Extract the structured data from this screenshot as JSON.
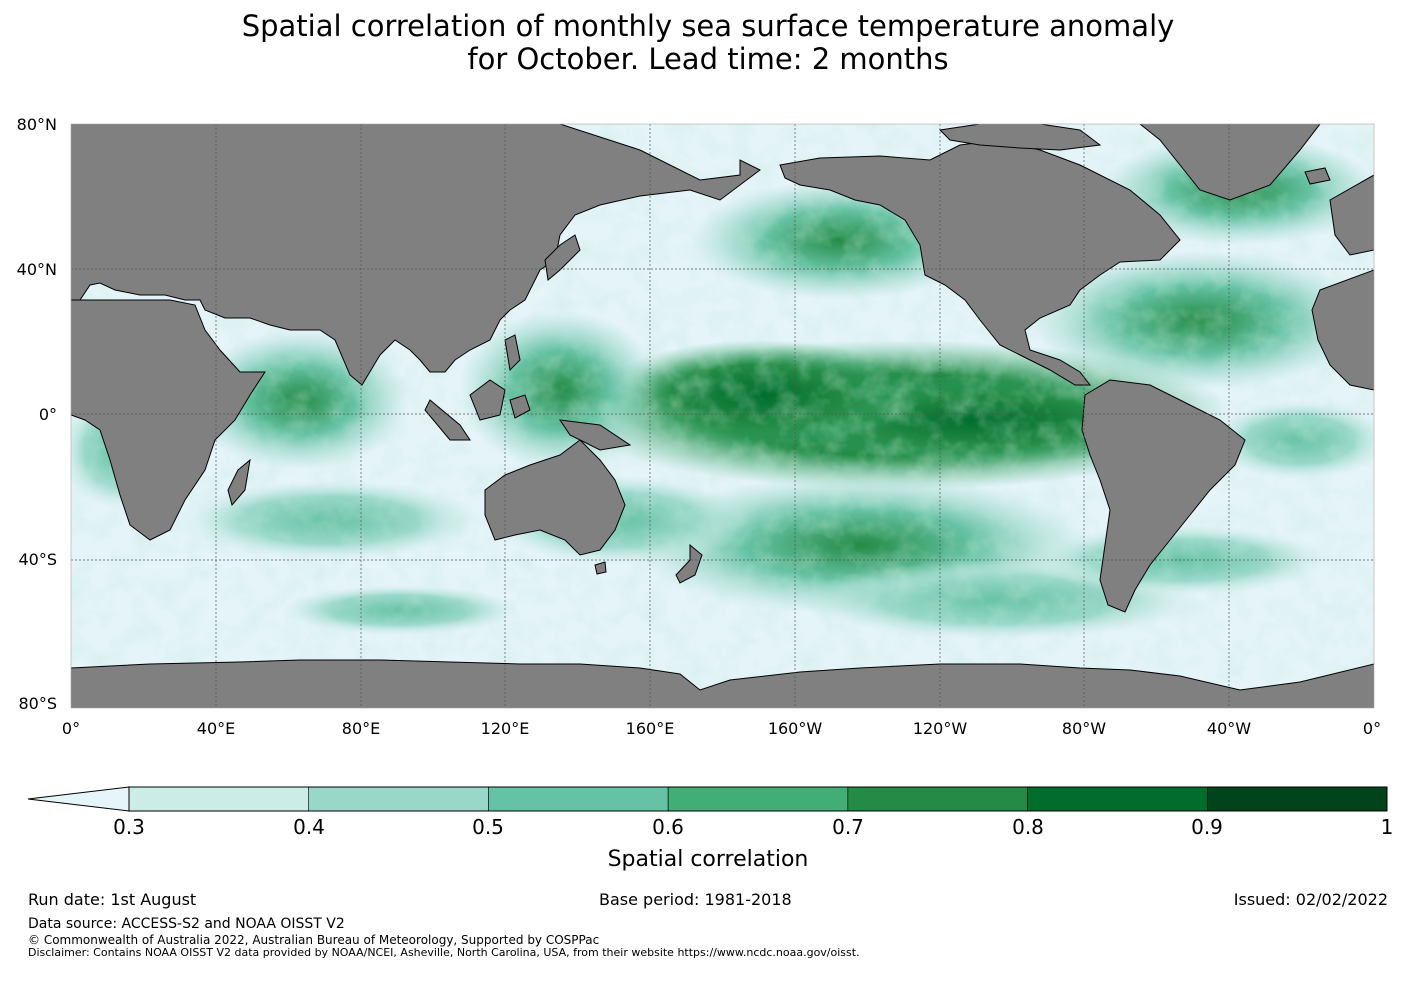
{
  "title": {
    "line1": "Spatial correlation of monthly sea surface temperature anomaly",
    "line2": "for October. Lead time: 2 months"
  },
  "map": {
    "lat_labels": [
      "80°N",
      "40°N",
      "0°",
      "40°S",
      "80°S"
    ],
    "lon_labels": [
      "0°",
      "40°E",
      "80°E",
      "120°E",
      "160°E",
      "160°W",
      "120°W",
      "80°W",
      "40°W",
      "0°"
    ],
    "land_color": "#808080",
    "ocean_low_color": "#e5f4f9"
  },
  "colorbar": {
    "title": "Spatial correlation",
    "ticks": [
      "0.3",
      "0.4",
      "0.5",
      "0.6",
      "0.7",
      "0.8",
      "0.9",
      "1"
    ],
    "colors": [
      "#ccece6",
      "#99d8c9",
      "#66c2a4",
      "#41ae76",
      "#238b45",
      "#006d2c",
      "#00441b"
    ],
    "extend_color": "#e5f5f9"
  },
  "footer": {
    "run_date": "Run date: 1st August",
    "base_period": "Base period: 1981-2018",
    "issued": "Issued: 02/02/2022",
    "data_source": "Data source: ACCESS-S2 and NOAA OISST V2",
    "copyright": "© Commonwealth of Australia 2022, Australian Bureau of Meteorology, Supported by COSPPac",
    "disclaimer": "Disclaimer: Contains NOAA OISST V2 data provided by NOAA/NCEI, Asheville, North Carolina, USA, from their website https://www.ncdc.noaa.gov/oisst."
  }
}
